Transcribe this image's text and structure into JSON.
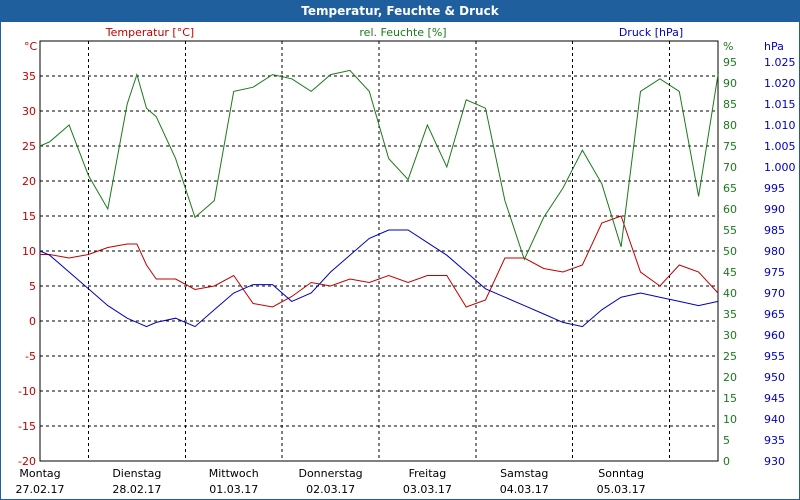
{
  "window": {
    "title": "Temperatur, Feuchte & Druck"
  },
  "colors": {
    "temperature": "#c00000",
    "humidity": "#1a7a1a",
    "pressure": "#0000c0",
    "titlebar": "#1f5f9e",
    "grid": "#000000"
  },
  "chart_data": {
    "type": "line",
    "title": "Temperatur, Feuchte & Druck",
    "grid": true,
    "x_categories": [
      {
        "day": "Montag",
        "date": "27.02.17"
      },
      {
        "day": "Dienstag",
        "date": "28.02.17"
      },
      {
        "day": "Mittwoch",
        "date": "01.03.17"
      },
      {
        "day": "Donnerstag",
        "date": "02.03.17"
      },
      {
        "day": "Freitag",
        "date": "03.03.17"
      },
      {
        "day": "Samstag",
        "date": "04.03.17"
      },
      {
        "day": "Sonntag",
        "date": "05.03.17"
      }
    ],
    "axes": {
      "temperature": {
        "label": "Temperatur [°C]",
        "unit": "°C",
        "range": [
          -20,
          40
        ],
        "ticks": [
          "40",
          "35",
          "30",
          "25",
          "20",
          "15",
          "10",
          "5",
          "0",
          "-5",
          "-10",
          "-15",
          "-20"
        ]
      },
      "humidity": {
        "label": "rel. Feuchte [%]",
        "unit": "%",
        "range": [
          0,
          100
        ],
        "ticks": [
          "95",
          "90",
          "85",
          "80",
          "75",
          "70",
          "65",
          "60",
          "55",
          "50",
          "45",
          "40",
          "35",
          "30",
          "25",
          "20",
          "15",
          "10",
          "5",
          "0"
        ]
      },
      "pressure": {
        "label": "Druck [hPa]",
        "unit": "hPa",
        "range": [
          930,
          1030
        ],
        "ticks": [
          "1.025",
          "1.020",
          "1.015",
          "1.010",
          "1.005",
          "1.000",
          "995",
          "990",
          "985",
          "980",
          "975",
          "970",
          "965",
          "960",
          "955",
          "950",
          "945",
          "940",
          "935",
          "930"
        ]
      }
    },
    "series": [
      {
        "name": "Temperatur [°C]",
        "axis": "temperature",
        "x": [
          0,
          0.1,
          0.3,
          0.5,
          0.7,
          0.9,
          1.0,
          1.1,
          1.2,
          1.4,
          1.6,
          1.8,
          2.0,
          2.2,
          2.4,
          2.6,
          2.8,
          3.0,
          3.2,
          3.4,
          3.6,
          3.8,
          4.0,
          4.2,
          4.4,
          4.6,
          4.8,
          5.0,
          5.2,
          5.4,
          5.6,
          5.8,
          6.0,
          6.2,
          6.4,
          6.6,
          6.8,
          7.0
        ],
        "y": [
          9.5,
          9.5,
          9,
          9.5,
          10.5,
          11,
          11,
          8,
          6,
          6,
          4.5,
          5,
          6.5,
          2.5,
          2,
          3.5,
          5.5,
          5,
          6,
          5.5,
          6.5,
          5.5,
          6.5,
          6.5,
          2,
          3,
          9,
          9,
          7.5,
          7,
          8,
          14,
          15,
          7,
          5,
          8,
          7,
          4
        ]
      },
      {
        "name": "rel. Feuchte [%]",
        "axis": "humidity",
        "x": [
          0,
          0.1,
          0.3,
          0.5,
          0.7,
          0.9,
          1.0,
          1.1,
          1.2,
          1.4,
          1.6,
          1.8,
          2.0,
          2.2,
          2.4,
          2.6,
          2.8,
          3.0,
          3.2,
          3.4,
          3.6,
          3.8,
          4.0,
          4.2,
          4.4,
          4.6,
          4.8,
          5.0,
          5.2,
          5.4,
          5.6,
          5.8,
          6.0,
          6.2,
          6.4,
          6.6,
          6.8,
          7.0
        ],
        "y": [
          75,
          76,
          80,
          68,
          60,
          85,
          92,
          84,
          82,
          72,
          58,
          62,
          88,
          89,
          92,
          91,
          88,
          92,
          93,
          88,
          72,
          67,
          80,
          70,
          86,
          84,
          62,
          48,
          58,
          65,
          74,
          66,
          51,
          88,
          91,
          88,
          63,
          92
        ]
      },
      {
        "name": "Druck [hPa]",
        "axis": "pressure",
        "x": [
          0,
          0.1,
          0.3,
          0.5,
          0.7,
          0.9,
          1.0,
          1.1,
          1.2,
          1.4,
          1.6,
          1.8,
          2.0,
          2.2,
          2.4,
          2.6,
          2.8,
          3.0,
          3.2,
          3.4,
          3.6,
          3.8,
          4.0,
          4.2,
          4.4,
          4.6,
          4.8,
          5.0,
          5.2,
          5.4,
          5.6,
          5.8,
          6.0,
          6.2,
          6.4,
          6.6,
          6.8,
          7.0
        ],
        "y": [
          980,
          979,
          975,
          971,
          967,
          964,
          963,
          962,
          963,
          964,
          962,
          966,
          970,
          972,
          972,
          968,
          970,
          975,
          979,
          983,
          985,
          985,
          982,
          979,
          975,
          971,
          969,
          967,
          965,
          963,
          962,
          966,
          969,
          970,
          969,
          968,
          967,
          968
        ]
      }
    ]
  }
}
